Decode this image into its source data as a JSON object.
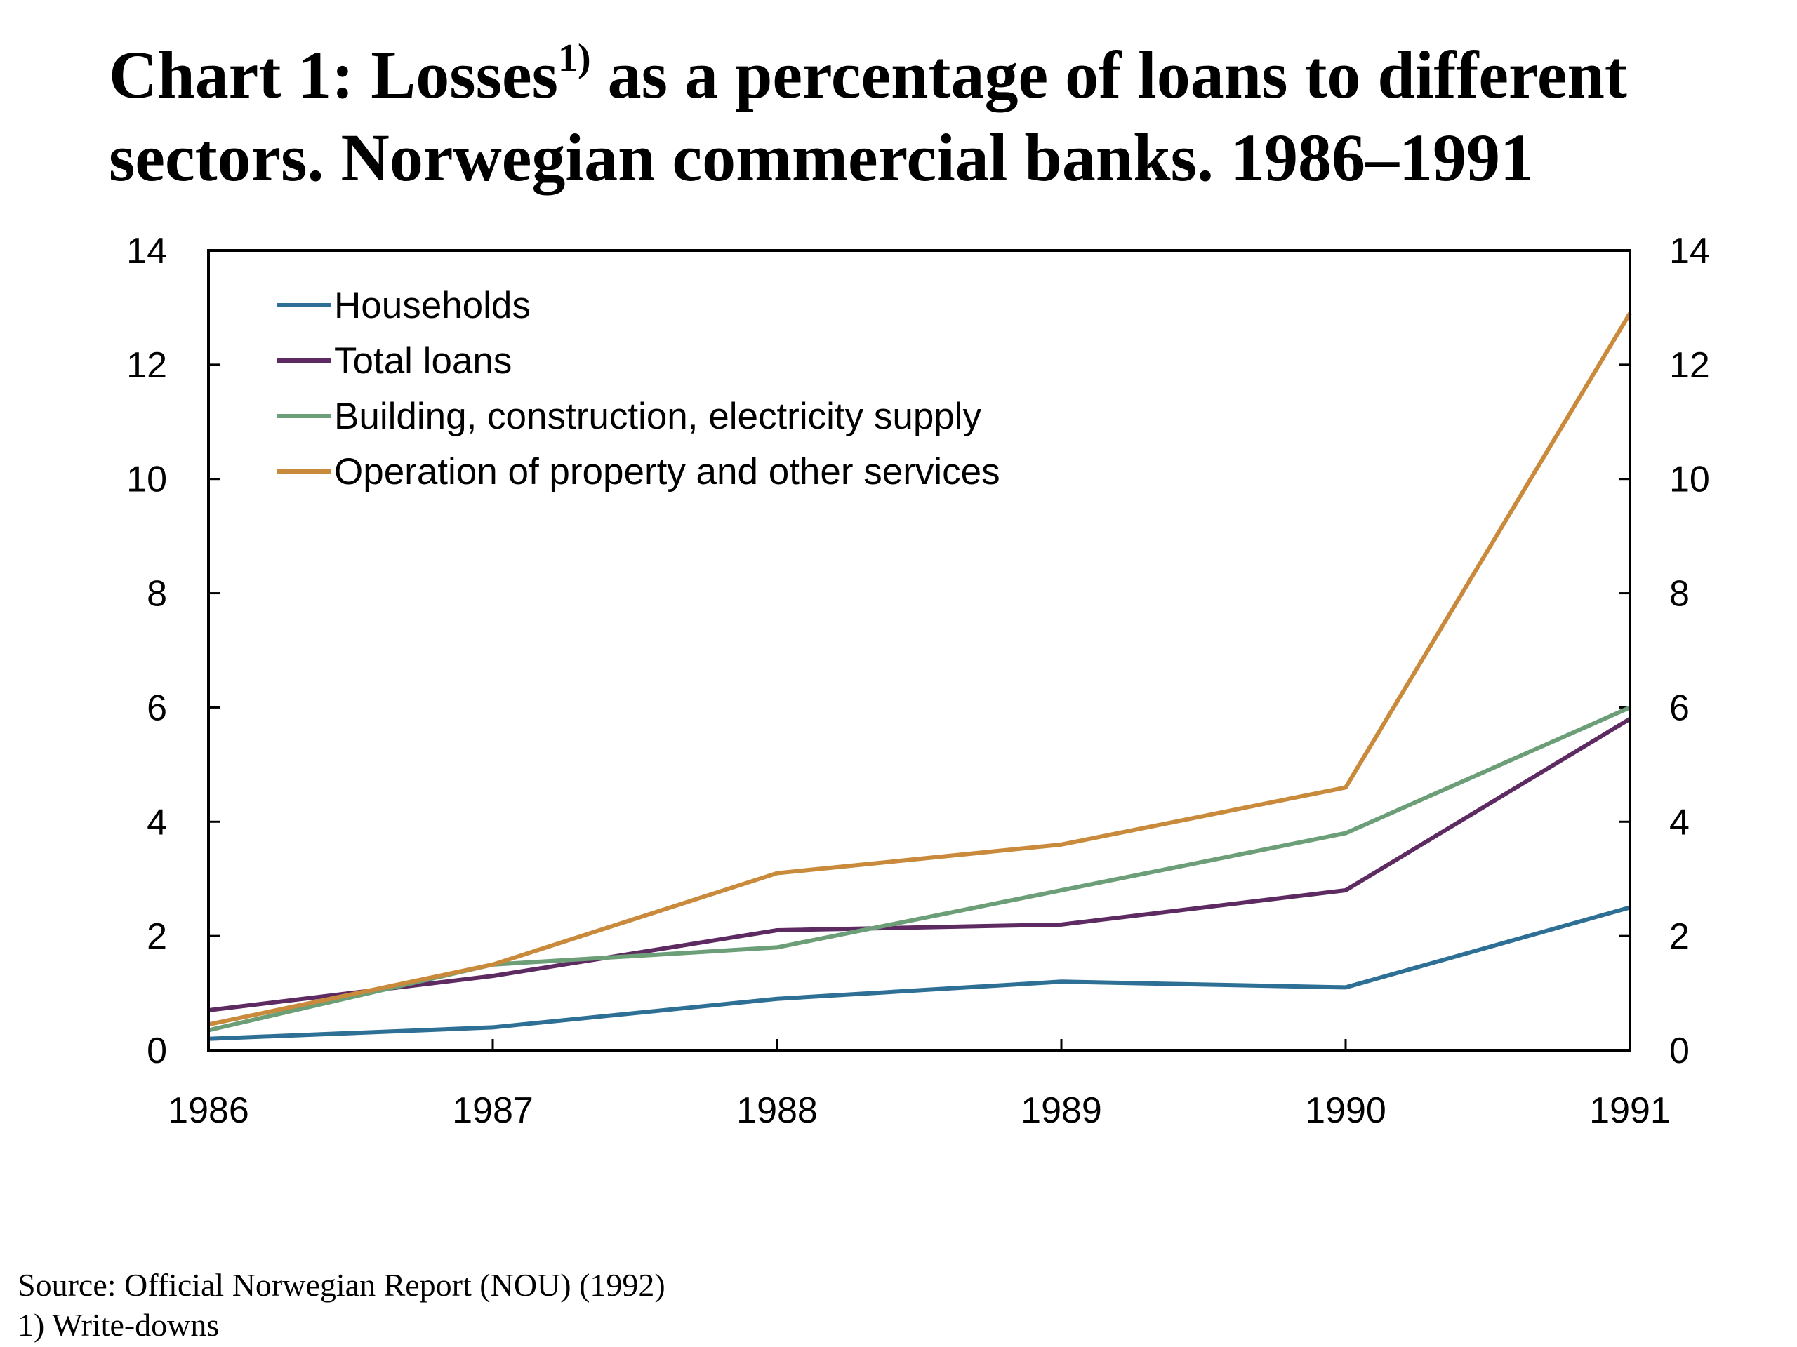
{
  "title": {
    "part1": "Chart 1: Losses",
    "sup": "1)",
    "part2": " as a percentage of loans to different sectors. Norwegian commercial banks. 1986–1991"
  },
  "source": "Source: Official Norwegian Report (NOU) (1992)",
  "footnote": "1) Write-downs",
  "chart_data": {
    "type": "line",
    "x": [
      1986,
      1987,
      1988,
      1989,
      1990,
      1991
    ],
    "ylim": [
      0,
      14
    ],
    "yticks": [
      0,
      2,
      4,
      6,
      8,
      10,
      12,
      14
    ],
    "secondary_y_axis": true,
    "legend_position": "top-left",
    "grid": false,
    "series": [
      {
        "name": "Households",
        "color": "#2e6f95",
        "values": [
          0.2,
          0.4,
          0.9,
          1.2,
          1.1,
          2.5
        ]
      },
      {
        "name": "Total loans",
        "color": "#5e2a62",
        "values": [
          0.7,
          1.3,
          2.1,
          2.2,
          2.8,
          5.8
        ]
      },
      {
        "name": "Building, construction, electricity supply",
        "color": "#6c9f78",
        "values": [
          0.35,
          1.5,
          1.8,
          2.8,
          3.8,
          6.0
        ]
      },
      {
        "name": "Operation of property and other services",
        "color": "#c98a3c",
        "values": [
          0.45,
          1.5,
          3.1,
          3.6,
          4.6,
          12.9
        ]
      }
    ]
  }
}
